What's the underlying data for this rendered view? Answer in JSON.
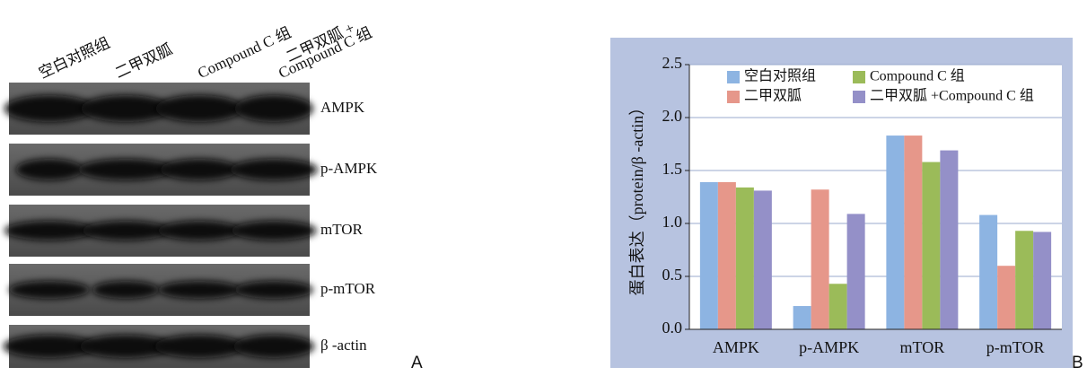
{
  "blot": {
    "lanes": [
      [
        "空白对照组"
      ],
      [
        "二甲双胍"
      ],
      [
        "Compound C 组"
      ],
      [
        "二甲双胍 +",
        "Compound C 组"
      ]
    ],
    "proteins": [
      "AMPK",
      "p-AMPK",
      "mTOR",
      "p-mTOR",
      "β -actin"
    ],
    "panel_label": "A"
  },
  "chart_data": {
    "type": "bar",
    "panel_label": "B",
    "y_label": "蛋白表达（protein/β -actin）",
    "categories": [
      "AMPK",
      "p-AMPK",
      "mTOR",
      "p-mTOR"
    ],
    "series": [
      {
        "name": "空白对照组",
        "color": "#8db4e2",
        "values": [
          1.39,
          0.22,
          1.83,
          1.08
        ]
      },
      {
        "name": "二甲双胍",
        "color": "#e6978a",
        "values": [
          1.39,
          1.32,
          1.83,
          0.6
        ]
      },
      {
        "name": "Compound C 组",
        "color": "#9bbb59",
        "values": [
          1.34,
          0.43,
          1.58,
          0.93
        ]
      },
      {
        "name": "二甲双胍 +Compound C 组",
        "color": "#9490c8",
        "values": [
          1.31,
          1.09,
          1.69,
          0.92
        ]
      }
    ],
    "ylim": [
      0,
      2.5
    ],
    "yticks": [
      {
        "value": 0,
        "label": "0.0"
      },
      0.5,
      {
        "value": 1,
        "label": "1.0"
      },
      1.5,
      {
        "value": 2,
        "label": "2.0"
      },
      2.5
    ],
    "grid": true
  }
}
